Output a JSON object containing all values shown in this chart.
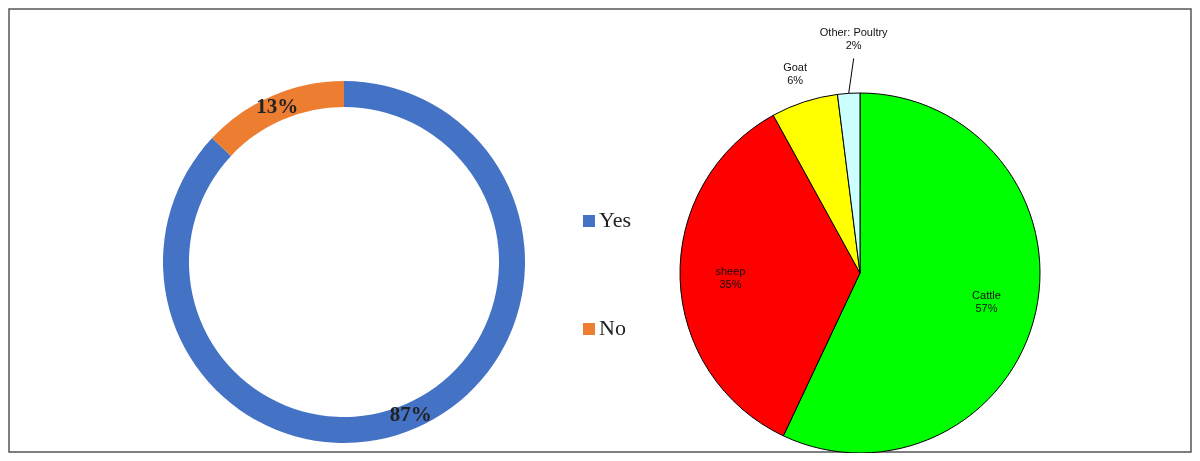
{
  "chart_data": [
    {
      "type": "donut",
      "categories": [
        "Yes",
        "No"
      ],
      "values": [
        87,
        13
      ],
      "colors": [
        "#4472c4",
        "#ed7d31"
      ],
      "value_labels": [
        "87%",
        "13%"
      ],
      "legend": "right"
    },
    {
      "type": "pie",
      "categories": [
        "Cattle",
        "sheep",
        "Goat",
        "Other: Poultry"
      ],
      "values": [
        57,
        35,
        6,
        2
      ],
      "colors": [
        "#00ff00",
        "#ff0000",
        "#ffff00",
        "#ccffff"
      ],
      "value_labels": [
        "57%",
        "35%",
        "6%",
        "2%"
      ]
    }
  ]
}
